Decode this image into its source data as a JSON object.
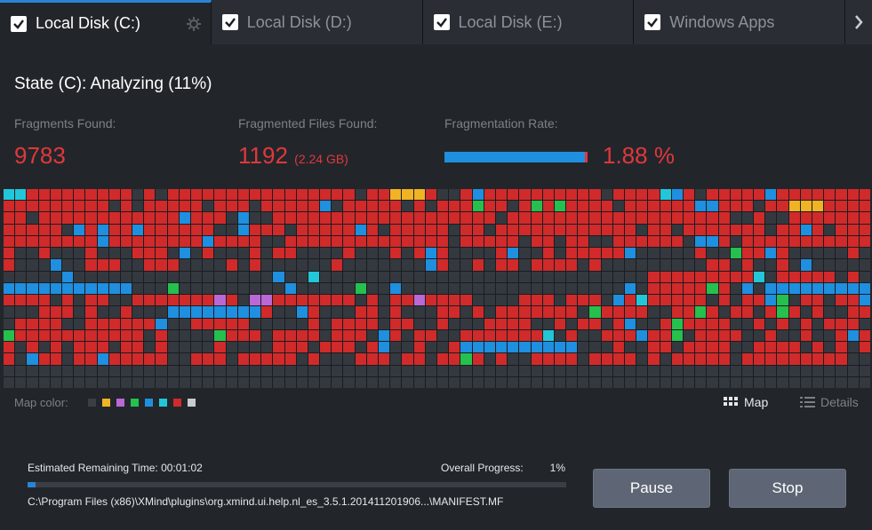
{
  "tabs": [
    {
      "label": "Local Disk (C:)"
    },
    {
      "label": "Local Disk (D:)"
    },
    {
      "label": "Local Disk (E:)"
    },
    {
      "label": "Windows Apps"
    }
  ],
  "state": "State (C): Analyzing (11%)",
  "stats": {
    "fragments_label": "Fragments Found:",
    "fragments_value": "9783",
    "files_label": "Fragmented Files Found:",
    "files_value": "1192",
    "files_size": "(2.24 GB)",
    "rate_label": "Fragmentation Rate:",
    "rate_value": "1.88 %",
    "rate_fraction": 0.0188
  },
  "map": {
    "legend_label": "Map color:",
    "legend_colors": [
      "#3a3e45",
      "#f0b324",
      "#b968d6",
      "#25c04d",
      "#1f8fdf",
      "#23c6d8",
      "#d12a2a",
      "#c8cbd0"
    ],
    "view_map": "Map",
    "view_details": "Details"
  },
  "progress": {
    "remaining_label": "Estimated Remaining Time:",
    "remaining_value": "00:01:02",
    "overall_label": "Overall Progress:",
    "overall_value": "1%",
    "percent": 1,
    "current_path": "C:\\Program Files (x86)\\XMind\\plugins\\org.xmind.ui.help.nl_es_3.5.1.201411201906...\\MANIFEST.MF"
  },
  "buttons": {
    "pause": "Pause",
    "stop": "Stop"
  },
  "colors": {
    "accent": "#2a84d6",
    "danger": "#e0383b",
    "empty": "#34383f"
  }
}
